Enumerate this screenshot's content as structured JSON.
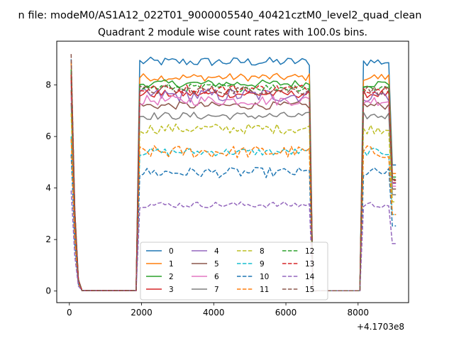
{
  "suptitle": "n file: modeM0/AS1A12_022T01_9000005540_40421cztM0_level2_quad_clean",
  "chart_data": {
    "type": "line",
    "title": "Quadrant 2 module wise count rates with 100.0s bins.",
    "xlabel": "",
    "ylabel": "",
    "x_offset_label": "+4.1703e8",
    "xlim": [
      -350,
      9400
    ],
    "ylim": [
      -0.45,
      9.7
    ],
    "xticks": [
      0,
      2000,
      4000,
      6000,
      8000
    ],
    "yticks": [
      0,
      2,
      4,
      6,
      8
    ],
    "grid": false,
    "legend": {
      "placement": "lower-center",
      "columns": 4
    },
    "series": [
      {
        "name": "0",
        "color": "#1f77b4",
        "dash": "solid",
        "level": 8.9,
        "noise": 0.18,
        "start": 9.0
      },
      {
        "name": "1",
        "color": "#ff7f0e",
        "dash": "solid",
        "level": 8.3,
        "noise": 0.15,
        "start": 8.9
      },
      {
        "name": "2",
        "color": "#2ca02c",
        "dash": "solid",
        "level": 8.05,
        "noise": 0.15,
        "start": 8.6
      },
      {
        "name": "3",
        "color": "#d62728",
        "dash": "solid",
        "level": 7.65,
        "noise": 0.15,
        "start": 8.3
      },
      {
        "name": "4",
        "color": "#9467bd",
        "dash": "solid",
        "level": 7.6,
        "noise": 0.28,
        "start": 8.1
      },
      {
        "name": "5",
        "color": "#8c564b",
        "dash": "solid",
        "level": 7.2,
        "noise": 0.15,
        "start": 7.8
      },
      {
        "name": "6",
        "color": "#e377c2",
        "dash": "solid",
        "level": 7.4,
        "noise": 0.2,
        "start": 7.6
      },
      {
        "name": "7",
        "color": "#7f7f7f",
        "dash": "solid",
        "level": 6.8,
        "noise": 0.15,
        "start": 7.3
      },
      {
        "name": "8",
        "color": "#bcbd22",
        "dash": "dashed",
        "level": 6.3,
        "noise": 0.2,
        "start": 6.9
      },
      {
        "name": "9",
        "color": "#17becf",
        "dash": "dashed",
        "level": 5.4,
        "noise": 0.15,
        "start": 6.0
      },
      {
        "name": "10",
        "color": "#1f77b4",
        "dash": "dashed",
        "level": 4.6,
        "noise": 0.2,
        "start": 5.3
      },
      {
        "name": "11",
        "color": "#ff7f0e",
        "dash": "dashed",
        "level": 5.4,
        "noise": 0.25,
        "start": 5.9
      },
      {
        "name": "12",
        "color": "#2ca02c",
        "dash": "dashed",
        "level": 7.9,
        "noise": 0.15,
        "start": 8.5
      },
      {
        "name": "13",
        "color": "#d62728",
        "dash": "dashed",
        "level": 7.85,
        "noise": 0.18,
        "start": 8.4
      },
      {
        "name": "14",
        "color": "#9467bd",
        "dash": "dashed",
        "level": 3.35,
        "noise": 0.12,
        "start": 3.9
      },
      {
        "name": "15",
        "color": "#8c564b",
        "dash": "dashed",
        "level": 7.8,
        "noise": 0.18,
        "start": 9.2
      }
    ]
  }
}
